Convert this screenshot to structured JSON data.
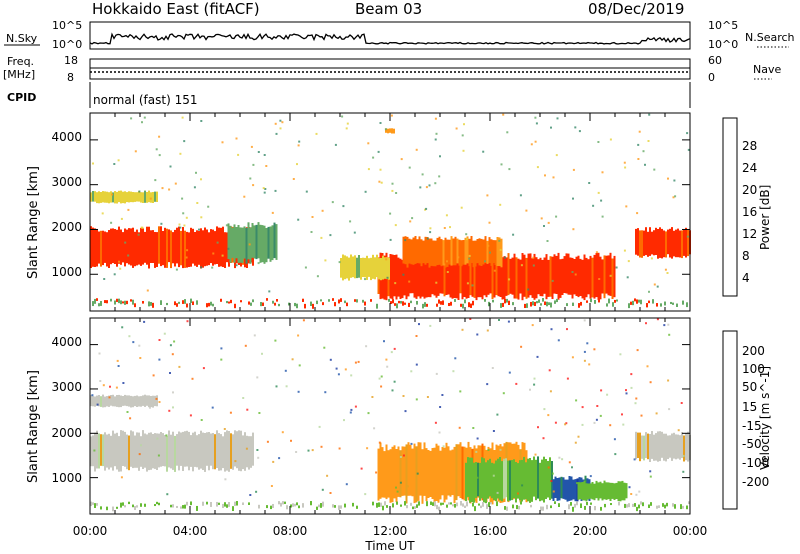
{
  "header": {
    "station": "Hokkaido East (fitACF)",
    "beam": "Beam 03",
    "date": "08/Dec/2019"
  },
  "nsky": {
    "label": "N.Sky",
    "ticks": [
      "10^5",
      "10^0"
    ],
    "right_ticks": [
      "10^5",
      "10^0"
    ],
    "right_label": "N.Search"
  },
  "freq": {
    "label_line1": "Freq.",
    "label_line2": "[MHz]",
    "ticks": [
      "18",
      "8"
    ],
    "right_ticks": [
      "60",
      "0"
    ],
    "right_label": "Nave"
  },
  "cpid": {
    "label": "CPID",
    "mode": "normal (fast) 151"
  },
  "axes": {
    "ylabel": "Slant Range [km]",
    "xlabel": "Time UT",
    "x_ticks": [
      "00:00",
      "04:00",
      "08:00",
      "12:00",
      "16:00",
      "20:00",
      "00:00"
    ],
    "y_ticks": [
      "1000",
      "2000",
      "3000",
      "4000"
    ]
  },
  "colors": {
    "power": [
      "#1a1aff",
      "#3355bb",
      "#3a8a6a",
      "#66aa66",
      "#e6d23a",
      "#ff9a1a",
      "#ff6a00",
      "#ff2a00"
    ],
    "velocity": [
      "#ff1a1a",
      "#ff6a00",
      "#ff9a1a",
      "#e6a020",
      "#c8c8c0",
      "#b8d8a0",
      "#66bb33",
      "#2e8b57",
      "#2255aa",
      "#1a3aa0"
    ]
  },
  "chart_data": [
    {
      "type": "heatmap",
      "title": "",
      "xlabel": "Time UT",
      "ylabel": "Slant Range [km]",
      "colorbar_label": "Power [dB]",
      "colorbar_ticks": [
        "4",
        "8",
        "12",
        "16",
        "20",
        "24",
        "28"
      ],
      "xlim": [
        "00:00",
        "24:00"
      ],
      "ylim": [
        180,
        4600
      ],
      "regions": [
        {
          "t_start": 0.0,
          "t_end": 6.5,
          "r_min": 1200,
          "r_max": 2000,
          "power_db": 28
        },
        {
          "t_start": 0.0,
          "t_end": 2.7,
          "r_min": 2600,
          "r_max": 2850,
          "power_db": 16
        },
        {
          "t_start": 5.5,
          "t_end": 7.5,
          "r_min": 1300,
          "r_max": 2100,
          "power_db": 12
        },
        {
          "t_start": 11.5,
          "t_end": 21.0,
          "r_min": 500,
          "r_max": 1400,
          "power_db": 28
        },
        {
          "t_start": 12.5,
          "t_end": 16.5,
          "r_min": 1200,
          "r_max": 1800,
          "power_db": 24
        },
        {
          "t_start": 10.0,
          "t_end": 12.0,
          "r_min": 900,
          "r_max": 1400,
          "power_db": 16
        },
        {
          "t_start": 21.8,
          "t_end": 24.0,
          "r_min": 1400,
          "r_max": 2000,
          "power_db": 28
        },
        {
          "t_start": 11.8,
          "t_end": 12.2,
          "r_min": 4150,
          "r_max": 4250,
          "power_db": 20
        }
      ]
    },
    {
      "type": "heatmap",
      "title": "",
      "xlabel": "Time UT",
      "ylabel": "Slant Range [km]",
      "colorbar_label": "Velocity [m s^-1]",
      "colorbar_ticks": [
        "200",
        "100",
        "50",
        "15",
        "-15",
        "-50",
        "-100",
        "-200"
      ],
      "xlim": [
        "00:00",
        "24:00"
      ],
      "ylim": [
        180,
        4600
      ],
      "regions": [
        {
          "t_start": 0.0,
          "t_end": 6.5,
          "r_min": 1200,
          "r_max": 2000,
          "velocity": 0
        },
        {
          "t_start": 0.0,
          "t_end": 2.7,
          "r_min": 2600,
          "r_max": 2850,
          "velocity": 0
        },
        {
          "t_start": 11.5,
          "t_end": 17.5,
          "r_min": 500,
          "r_max": 1700,
          "velocity": -60
        },
        {
          "t_start": 15.0,
          "t_end": 18.5,
          "r_min": 500,
          "r_max": 1400,
          "velocity": 40
        },
        {
          "t_start": 18.5,
          "t_end": 20.0,
          "r_min": 500,
          "r_max": 1000,
          "velocity": 150
        },
        {
          "t_start": 19.5,
          "t_end": 21.5,
          "r_min": 500,
          "r_max": 900,
          "velocity": 40
        },
        {
          "t_start": 21.8,
          "t_end": 24.0,
          "r_min": 1400,
          "r_max": 2000,
          "velocity": 0
        }
      ]
    }
  ]
}
